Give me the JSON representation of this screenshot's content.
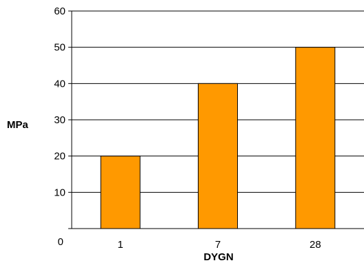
{
  "chart_data": {
    "type": "bar",
    "title": "",
    "xlabel": "DYGN",
    "ylabel": "MPa",
    "categories": [
      "1",
      "7",
      "28"
    ],
    "values": [
      20,
      40,
      50
    ],
    "ylim": [
      0,
      60
    ],
    "yticks": [
      "0",
      "10",
      "20",
      "30",
      "40",
      "50",
      "60"
    ],
    "grid": true,
    "bar_color": "#ff9900",
    "bar_edge_color": "#000000"
  }
}
